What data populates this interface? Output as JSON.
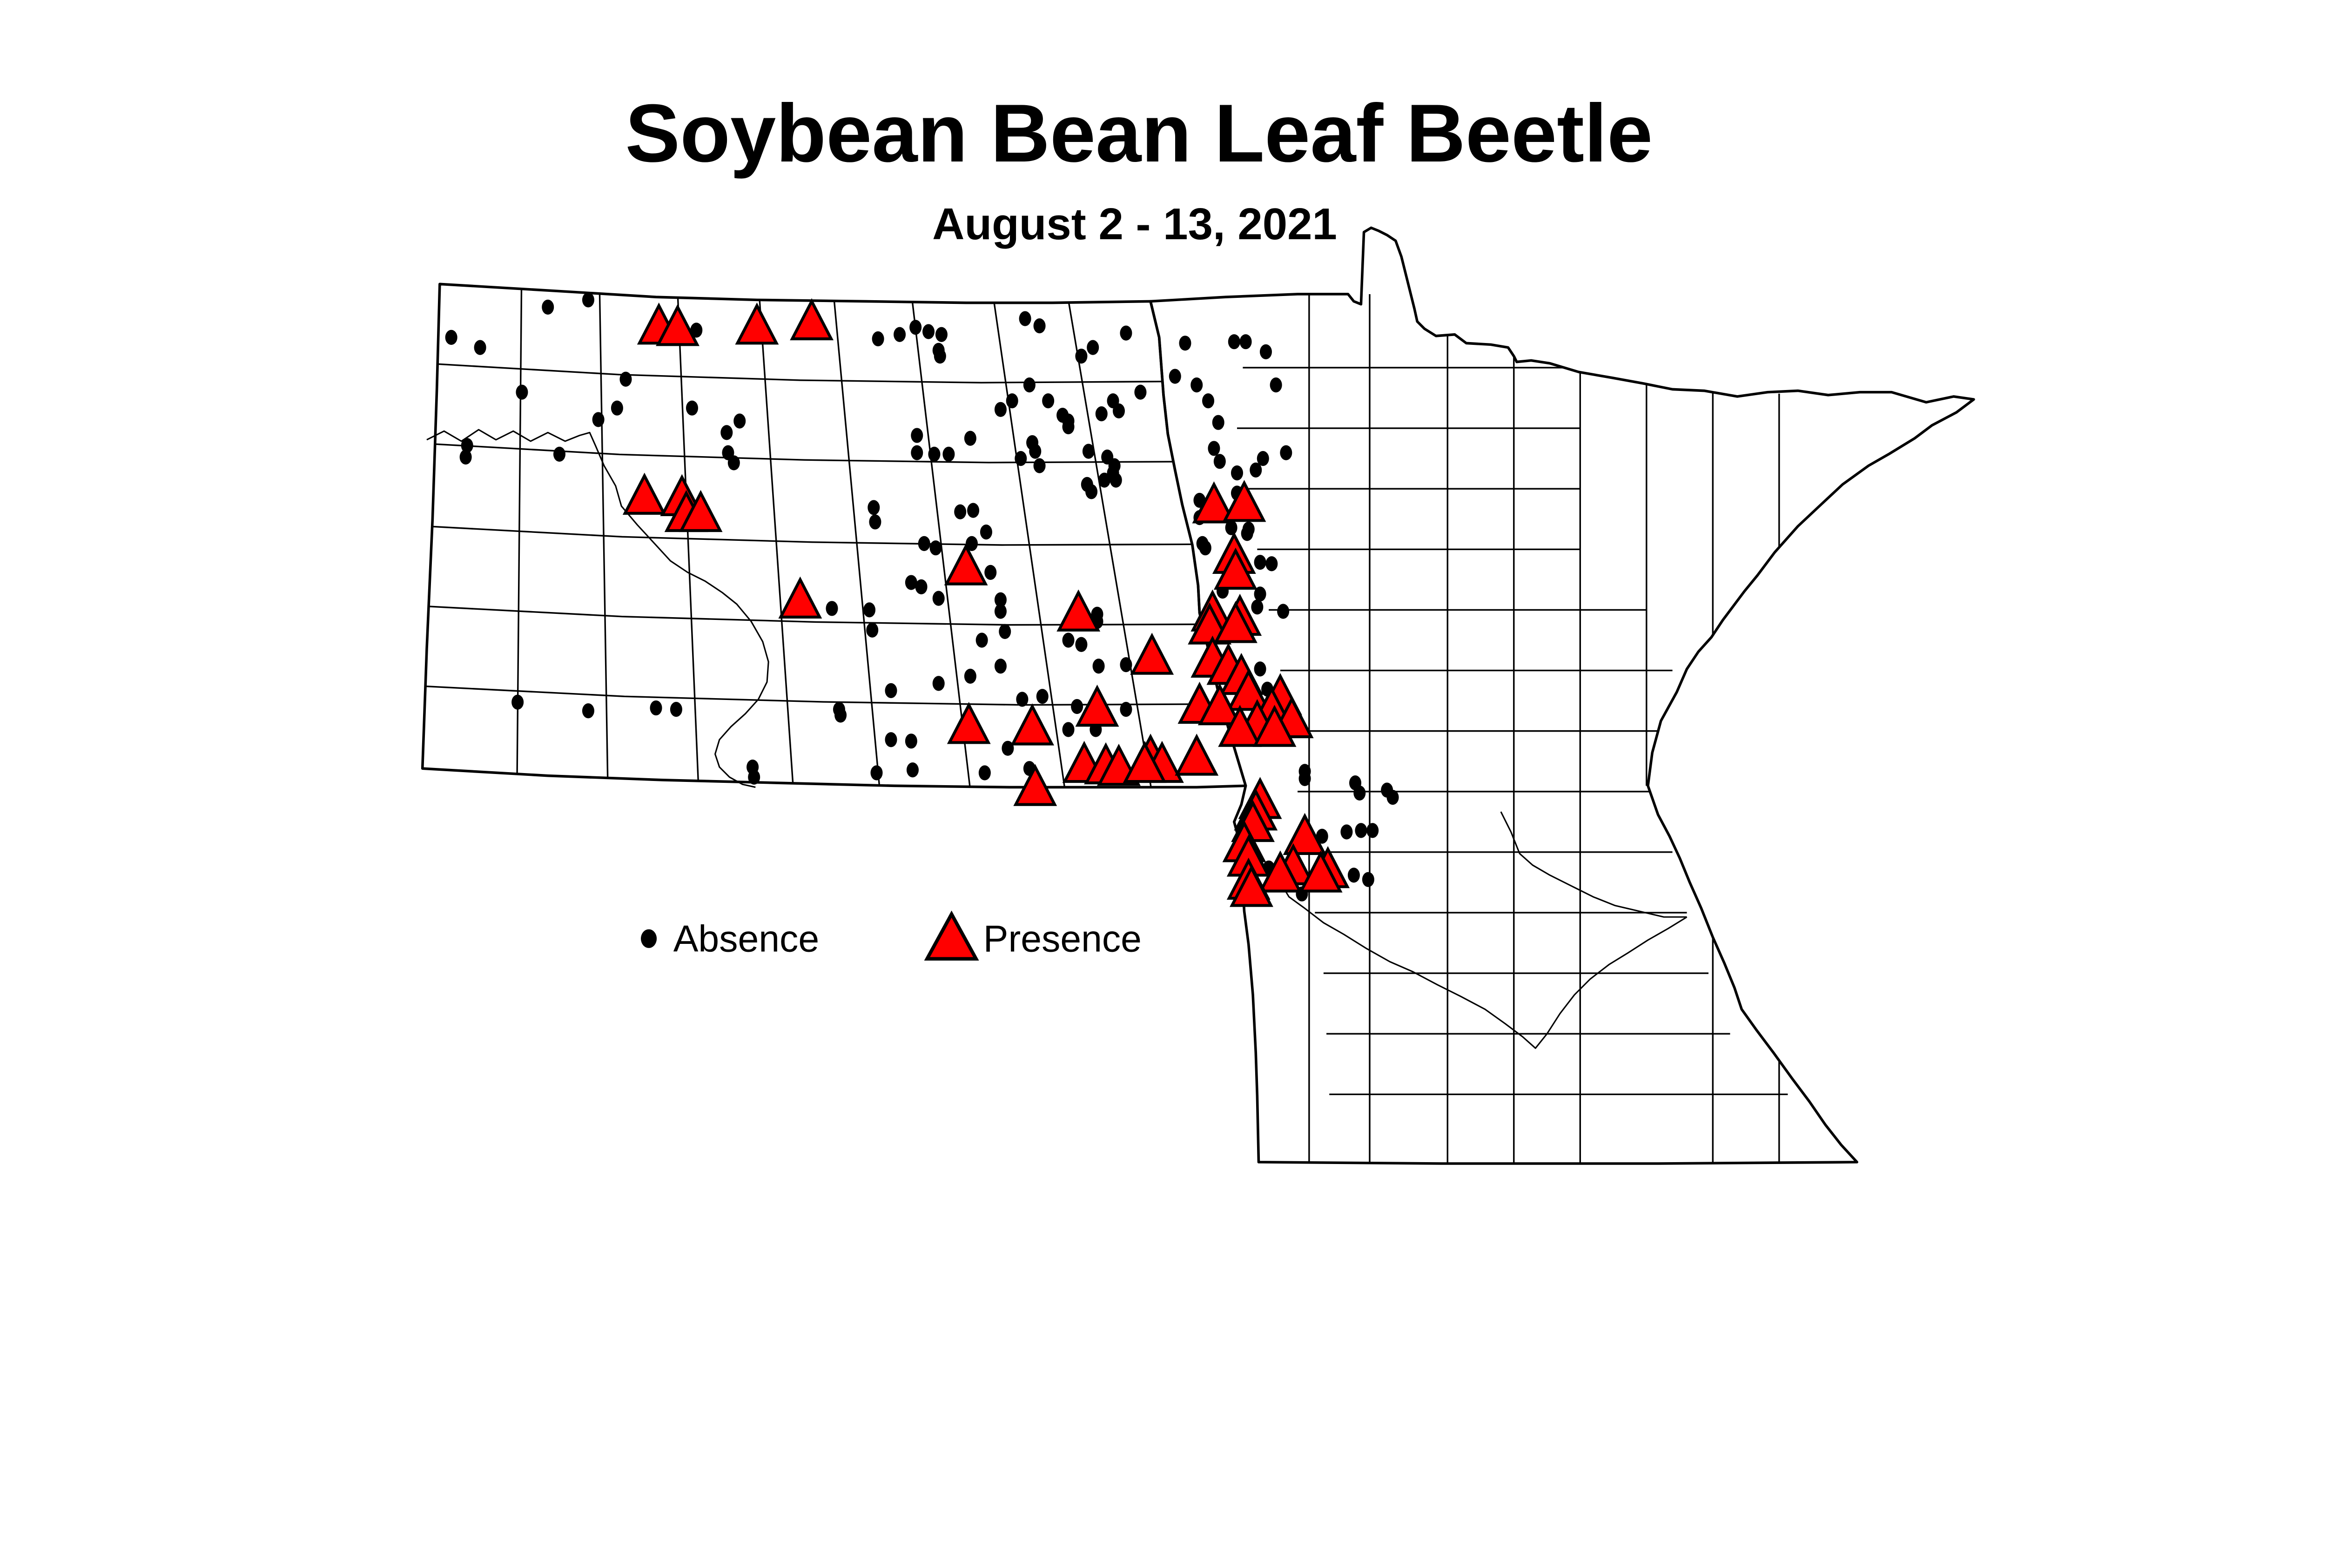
{
  "title": "Soybean Bean Leaf Beetle",
  "subtitle": "August 2 - 13, 2021",
  "legend": {
    "absence_label": "Absence",
    "presence_label": "Presence"
  },
  "colors": {
    "presence_fill": "#FF0000",
    "absence_fill": "#000000",
    "outline": "#000000",
    "background": "#FFFFFF"
  },
  "chart_data": {
    "type": "scatter",
    "title": "Soybean Bean Leaf Beetle",
    "subtitle": "August 2 - 13, 2021",
    "region": "North Dakota and Minnesota county map",
    "legend_position": "bottom-left",
    "series": [
      {
        "name": "Absence",
        "marker": "dot",
        "color": "#000000",
        "points": [
          [
            380,
            213
          ],
          [
            408,
            208
          ],
          [
            313,
            234
          ],
          [
            333,
            241
          ],
          [
            464,
            232
          ],
          [
            483,
            229
          ],
          [
            609,
            235
          ],
          [
            624,
            232
          ],
          [
            635,
            227
          ],
          [
            644,
            230
          ],
          [
            653,
            232
          ],
          [
            651,
            243
          ],
          [
            652,
            247
          ],
          [
            434,
            263
          ],
          [
            362,
            272
          ],
          [
            428,
            283
          ],
          [
            415,
            291
          ],
          [
            480,
            283
          ],
          [
            513,
            292
          ],
          [
            504,
            300
          ],
          [
            505,
            314
          ],
          [
            509,
            321
          ],
          [
            636,
            302
          ],
          [
            636,
            314
          ],
          [
            648,
            315
          ],
          [
            658,
            315
          ],
          [
            324,
            309
          ],
          [
            323,
            317
          ],
          [
            388,
            315
          ],
          [
            606,
            352
          ],
          [
            607,
            362
          ],
          [
            641,
            377
          ],
          [
            649,
            380
          ],
          [
            632,
            404
          ],
          [
            639,
            407
          ],
          [
            711,
            221
          ],
          [
            721,
            226
          ],
          [
            781,
            231
          ],
          [
            758,
            241
          ],
          [
            750,
            247
          ],
          [
            822,
            238
          ],
          [
            815,
            261
          ],
          [
            830,
            267
          ],
          [
            838,
            278
          ],
          [
            714,
            267
          ],
          [
            702,
            278
          ],
          [
            694,
            284
          ],
          [
            727,
            278
          ],
          [
            791,
            272
          ],
          [
            772,
            278
          ],
          [
            776,
            285
          ],
          [
            764,
            287
          ],
          [
            737,
            288
          ],
          [
            741,
            292
          ],
          [
            741,
            296
          ],
          [
            673,
            304
          ],
          [
            716,
            307
          ],
          [
            718,
            313
          ],
          [
            708,
            318
          ],
          [
            721,
            323
          ],
          [
            755,
            313
          ],
          [
            768,
            317
          ],
          [
            773,
            323
          ],
          [
            772,
            328
          ],
          [
            766,
            333
          ],
          [
            774,
            333
          ],
          [
            754,
            336
          ],
          [
            757,
            341
          ],
          [
            845,
            293
          ],
          [
            885,
            267
          ],
          [
            856,
            237
          ],
          [
            864,
            237
          ],
          [
            878,
            244
          ],
          [
            842,
            311
          ],
          [
            846,
            320
          ],
          [
            858,
            328
          ],
          [
            871,
            326
          ],
          [
            876,
            318
          ],
          [
            892,
            314
          ],
          [
            858,
            342
          ],
          [
            832,
            347
          ],
          [
            832,
            359
          ],
          [
            854,
            366
          ],
          [
            865,
            370
          ],
          [
            834,
            377
          ],
          [
            836,
            380
          ],
          [
            874,
            390
          ],
          [
            882,
            391
          ],
          [
            848,
            410
          ],
          [
            874,
            412
          ],
          [
            866,
            367
          ],
          [
            872,
            421
          ],
          [
            890,
            424
          ],
          [
            874,
            464
          ],
          [
            879,
            478
          ],
          [
            843,
            492
          ],
          [
            666,
            355
          ],
          [
            675,
            354
          ],
          [
            684,
            369
          ],
          [
            674,
            377
          ],
          [
            687,
            397
          ],
          [
            694,
            416
          ],
          [
            694,
            424
          ],
          [
            697,
            438
          ],
          [
            681,
            444
          ],
          [
            694,
            462
          ],
          [
            673,
            469
          ],
          [
            761,
            426
          ],
          [
            761,
            431
          ],
          [
            741,
            444
          ],
          [
            750,
            447
          ],
          [
            762,
            462
          ],
          [
            781,
            461
          ],
          [
            709,
            485
          ],
          [
            723,
            483
          ],
          [
            747,
            490
          ],
          [
            781,
            492
          ],
          [
            741,
            506
          ],
          [
            760,
            506
          ],
          [
            699,
            519
          ],
          [
            683,
            536
          ],
          [
            714,
            533
          ],
          [
            359,
            487
          ],
          [
            408,
            493
          ],
          [
            455,
            491
          ],
          [
            469,
            492
          ],
          [
            577,
            422
          ],
          [
            603,
            423
          ],
          [
            605,
            437
          ],
          [
            651,
            415
          ],
          [
            618,
            479
          ],
          [
            651,
            474
          ],
          [
            582,
            492
          ],
          [
            583,
            496
          ],
          [
            618,
            513
          ],
          [
            632,
            514
          ],
          [
            608,
            536
          ],
          [
            633,
            534
          ],
          [
            522,
            532
          ],
          [
            523,
            539
          ],
          [
            905,
            535
          ],
          [
            905,
            540
          ],
          [
            940,
            543
          ],
          [
            943,
            550
          ],
          [
            962,
            548
          ],
          [
            966,
            553
          ],
          [
            917,
            580
          ],
          [
            934,
            577
          ],
          [
            944,
            576
          ],
          [
            952,
            576
          ],
          [
            880,
            602
          ],
          [
            903,
            620
          ],
          [
            921,
            606
          ],
          [
            939,
            607
          ],
          [
            949,
            610
          ]
        ]
      },
      {
        "name": "Presence",
        "marker": "triangle",
        "color": "#FF0000",
        "points": [
          [
            457,
            227
          ],
          [
            470,
            228
          ],
          [
            525,
            227
          ],
          [
            563,
            224
          ],
          [
            447,
            345
          ],
          [
            473,
            346
          ],
          [
            476,
            357
          ],
          [
            486,
            357
          ],
          [
            555,
            417
          ],
          [
            670,
            394
          ],
          [
            748,
            426
          ],
          [
            842,
            351
          ],
          [
            863,
            350
          ],
          [
            856,
            386
          ],
          [
            857,
            397
          ],
          [
            841,
            426
          ],
          [
            860,
            429
          ],
          [
            839,
            435
          ],
          [
            857,
            434
          ],
          [
            799,
            456
          ],
          [
            841,
            458
          ],
          [
            852,
            463
          ],
          [
            861,
            470
          ],
          [
            866,
            481
          ],
          [
            888,
            484
          ],
          [
            832,
            490
          ],
          [
            846,
            491
          ],
          [
            882,
            493
          ],
          [
            896,
            500
          ],
          [
            872,
            502
          ],
          [
            860,
            506
          ],
          [
            884,
            506
          ],
          [
            798,
            526
          ],
          [
            806,
            531
          ],
          [
            830,
            526
          ],
          [
            672,
            504
          ],
          [
            716,
            505
          ],
          [
            761,
            492
          ],
          [
            752,
            531
          ],
          [
            767,
            532
          ],
          [
            776,
            533
          ],
          [
            794,
            531
          ],
          [
            718,
            547
          ],
          [
            874,
            556
          ],
          [
            871,
            564
          ],
          [
            869,
            572
          ],
          [
            905,
            581
          ],
          [
            863,
            586
          ],
          [
            866,
            596
          ],
          [
            897,
            602
          ],
          [
            921,
            604
          ],
          [
            888,
            607
          ],
          [
            916,
            607
          ],
          [
            866,
            612
          ],
          [
            868,
            617
          ]
        ]
      }
    ]
  }
}
